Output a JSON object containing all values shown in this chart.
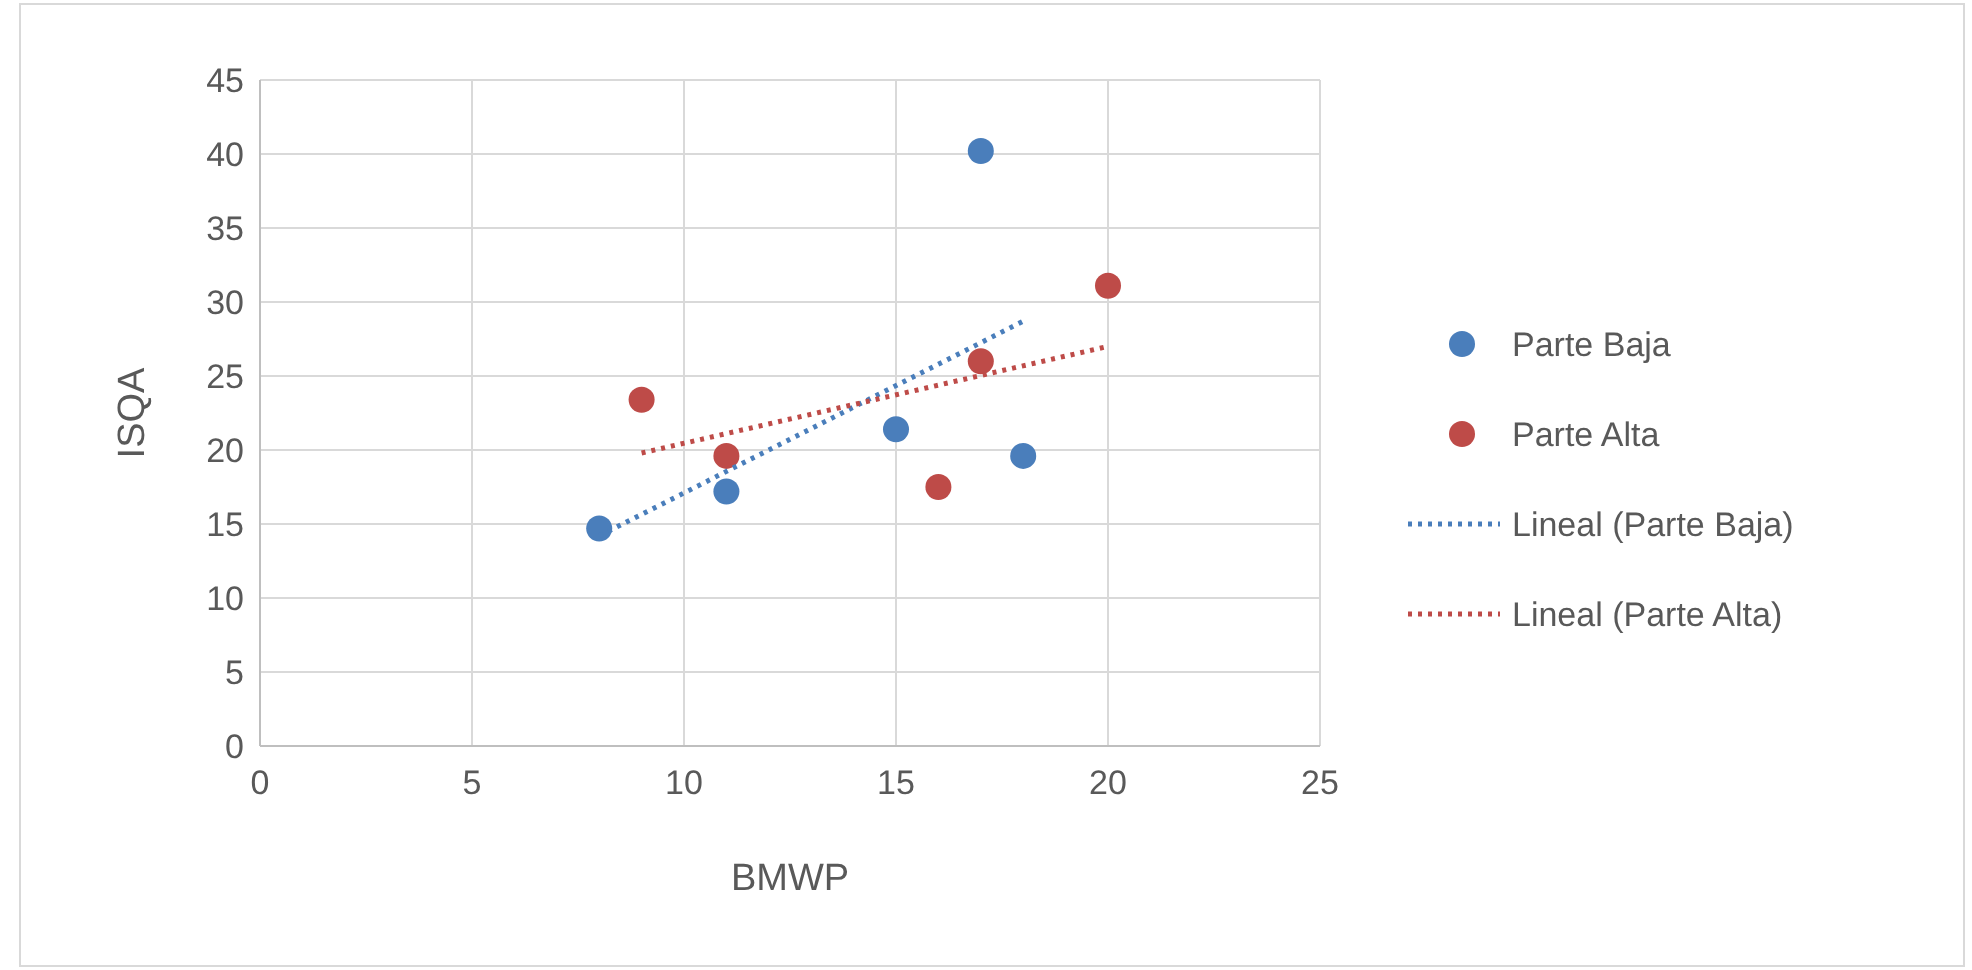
{
  "chart_data": {
    "type": "scatter",
    "xlabel": "BMWP",
    "ylabel": "ISQA",
    "xlim": [
      0,
      25
    ],
    "xticks": [
      0,
      5,
      10,
      15,
      20,
      25
    ],
    "ylim": [
      0,
      45
    ],
    "yticks": [
      0,
      5,
      10,
      15,
      20,
      25,
      30,
      35,
      40,
      45
    ],
    "grid": true,
    "legend": "right",
    "marker": "circle",
    "series": [
      {
        "name": "Parte Baja",
        "color": "#4a7ebb",
        "x": [
          8,
          11,
          15,
          17,
          18
        ],
        "values": [
          14.7,
          17.2,
          21.4,
          40.2,
          19.6
        ]
      },
      {
        "name": "Parte Alta",
        "color": "#be4b48",
        "x": [
          9,
          11,
          16,
          17,
          20
        ],
        "values": [
          23.4,
          19.6,
          17.5,
          26,
          31.1
        ]
      },
      {
        "name": "Lineal (Parte Baja)",
        "type": "line",
        "marker": "none",
        "line_style": "dotted",
        "color": "#4a7ebb",
        "x": [
          8,
          18
        ],
        "values": [
          14.2,
          28.7
        ]
      },
      {
        "name": "Lineal (Parte Alta)",
        "type": "line",
        "marker": "none",
        "line_style": "dotted",
        "color": "#be4b48",
        "x": [
          9,
          20
        ],
        "values": [
          19.8,
          27.0
        ]
      }
    ]
  }
}
